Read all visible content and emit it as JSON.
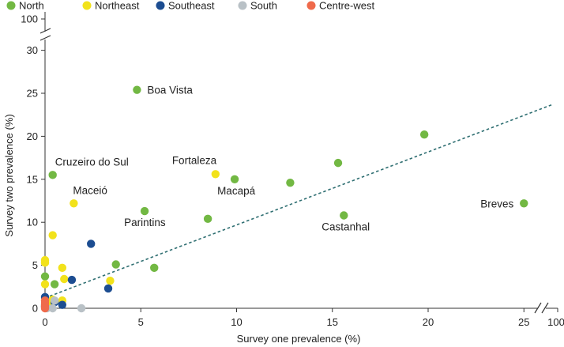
{
  "chart_data": {
    "type": "scatter",
    "xlabel": "Survey one prevalence (%)",
    "ylabel": "Survey two prevalence (%)",
    "xlim": [
      0,
      25
    ],
    "ylim": [
      0,
      30
    ],
    "x_break_label": "100",
    "y_break_label": "100",
    "xticks": [
      0,
      5,
      10,
      15,
      20,
      25
    ],
    "yticks": [
      0,
      5,
      10,
      15,
      20,
      25,
      30
    ],
    "legend_position": "top",
    "series": [
      {
        "name": "North",
        "color": "#72b843",
        "points": [
          {
            "x": 4.8,
            "y": 25.4,
            "label": "Boa Vista"
          },
          {
            "x": 19.8,
            "y": 20.2
          },
          {
            "x": 15.3,
            "y": 16.9
          },
          {
            "x": 0.4,
            "y": 15.5,
            "label": "Cruzeiro do Sul"
          },
          {
            "x": 9.9,
            "y": 15.0,
            "label": "Macapá"
          },
          {
            "x": 12.8,
            "y": 14.6
          },
          {
            "x": 25.0,
            "y": 12.2,
            "label": "Breves"
          },
          {
            "x": 5.2,
            "y": 11.3,
            "label": "Parintins"
          },
          {
            "x": 15.6,
            "y": 10.8,
            "label": "Castanhal"
          },
          {
            "x": 8.5,
            "y": 10.4
          },
          {
            "x": 3.7,
            "y": 5.1
          },
          {
            "x": 5.7,
            "y": 4.7
          },
          {
            "x": 0.0,
            "y": 3.7
          },
          {
            "x": 0.5,
            "y": 2.8
          },
          {
            "x": 0.0,
            "y": 0.4
          },
          {
            "x": 0.3,
            "y": 0.2
          }
        ]
      },
      {
        "name": "Northeast",
        "color": "#f2e21b",
        "points": [
          {
            "x": 8.9,
            "y": 15.6,
            "label": "Fortaleza"
          },
          {
            "x": 1.5,
            "y": 12.2,
            "label": "Maceió"
          },
          {
            "x": 0.4,
            "y": 8.5
          },
          {
            "x": 0.0,
            "y": 5.6
          },
          {
            "x": 0.0,
            "y": 5.3
          },
          {
            "x": 0.9,
            "y": 4.7
          },
          {
            "x": 1.0,
            "y": 3.4
          },
          {
            "x": 3.4,
            "y": 3.2
          },
          {
            "x": 0.0,
            "y": 2.8
          },
          {
            "x": 0.4,
            "y": 1.0
          },
          {
            "x": 0.9,
            "y": 0.9
          },
          {
            "x": 0.1,
            "y": 0.5
          }
        ]
      },
      {
        "name": "Southeast",
        "color": "#1c4d91",
        "points": [
          {
            "x": 2.4,
            "y": 7.5
          },
          {
            "x": 1.4,
            "y": 3.3
          },
          {
            "x": 3.3,
            "y": 2.3
          },
          {
            "x": 0.0,
            "y": 1.3
          },
          {
            "x": 0.5,
            "y": 0.7
          },
          {
            "x": 0.9,
            "y": 0.4
          },
          {
            "x": 0.0,
            "y": 0.2
          }
        ]
      },
      {
        "name": "South",
        "color": "#b9c1c6",
        "points": [
          {
            "x": 0.5,
            "y": 0.9
          },
          {
            "x": 1.9,
            "y": 0.0
          },
          {
            "x": 0.4,
            "y": 0.0
          },
          {
            "x": 0.1,
            "y": 0.0
          }
        ]
      },
      {
        "name": "Centre-west",
        "color": "#ef6a4b",
        "points": [
          {
            "x": 0.0,
            "y": 0.9
          },
          {
            "x": 0.0,
            "y": 0.6
          },
          {
            "x": 0.0,
            "y": 0.3
          },
          {
            "x": 0.0,
            "y": 0.1
          },
          {
            "x": 0.0,
            "y": 0.0
          }
        ]
      }
    ],
    "trendline": {
      "x0": 0,
      "y0": 1.2,
      "x1": 26.5,
      "y1": 23.7,
      "style": "dashed",
      "color": "#2f6f72"
    }
  }
}
